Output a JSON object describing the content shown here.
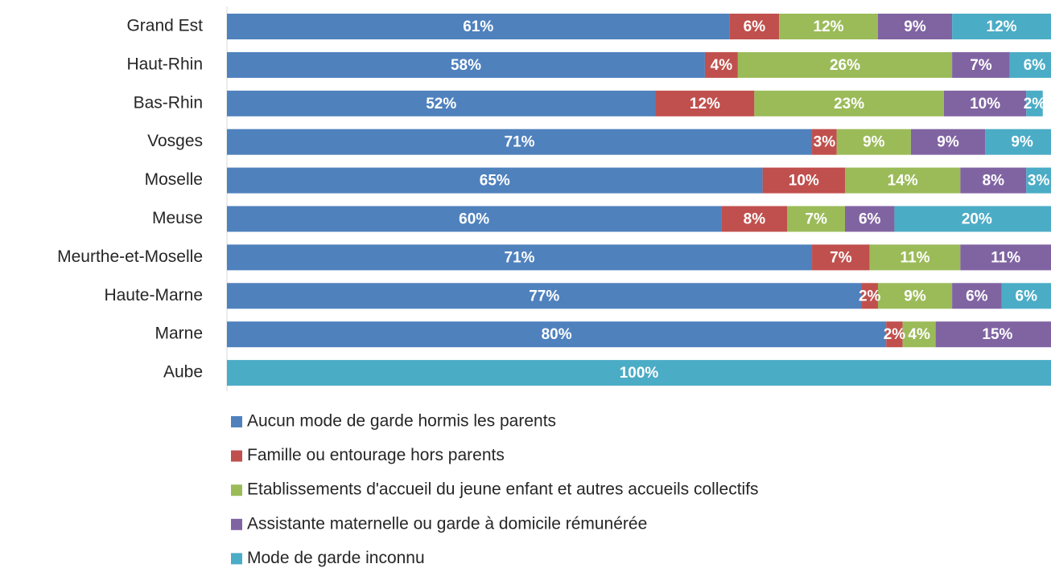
{
  "chart_data": {
    "type": "stacked_bar_horizontal",
    "categories": [
      "Grand Est",
      "Haut-Rhin",
      "Bas-Rhin",
      "Vosges",
      "Moselle",
      "Meuse",
      "Meurthe-et-Moselle",
      "Haute-Marne",
      "Marne",
      "Aube"
    ],
    "xlim": [
      0,
      100
    ],
    "legend": "bottom",
    "series": [
      {
        "name": "Aucun mode de garde hormis les parents",
        "color": "#4f81bd",
        "values": [
          61,
          58,
          52,
          71,
          65,
          60,
          71,
          77,
          80,
          null
        ],
        "value_labels": [
          "61%",
          "58%",
          "52%",
          "71%",
          "65%",
          "60%",
          "71%",
          "77%",
          "80%",
          null
        ]
      },
      {
        "name": "Famille ou entourage hors parents",
        "color": "#c0504d",
        "values": [
          6,
          4,
          12,
          3,
          10,
          8,
          7,
          2,
          2,
          null
        ],
        "value_labels": [
          "6%",
          "4%",
          "12%",
          "3%",
          "10%",
          "8%",
          "7%",
          "2%",
          "2%",
          null
        ]
      },
      {
        "name": "Etablissements d'accueil du jeune enfant et autres accueils collectifs",
        "color": "#9bbb59",
        "values": [
          12,
          26,
          23,
          9,
          14,
          7,
          11,
          9,
          4,
          null
        ],
        "value_labels": [
          "12%",
          "26%",
          "23%",
          "9%",
          "14%",
          "7%",
          "11%",
          "9%",
          "4%",
          null
        ]
      },
      {
        "name": "Assistante maternelle ou garde à domicile rémunérée",
        "color": "#8064a2",
        "values": [
          9,
          7,
          10,
          9,
          8,
          6,
          11,
          6,
          15,
          null
        ],
        "value_labels": [
          "9%",
          "7%",
          "10%",
          "9%",
          "8%",
          "6%",
          "11%",
          "6%",
          "15%",
          null
        ]
      },
      {
        "name": "Mode de garde inconnu",
        "color": "#4bacc6",
        "values": [
          12,
          6,
          2,
          9,
          3,
          20,
          null,
          6,
          null,
          100
        ],
        "value_labels": [
          "12%",
          "6%",
          "2%",
          "9%",
          "3%",
          "20%",
          null,
          "6%",
          null,
          "100%"
        ]
      }
    ]
  }
}
